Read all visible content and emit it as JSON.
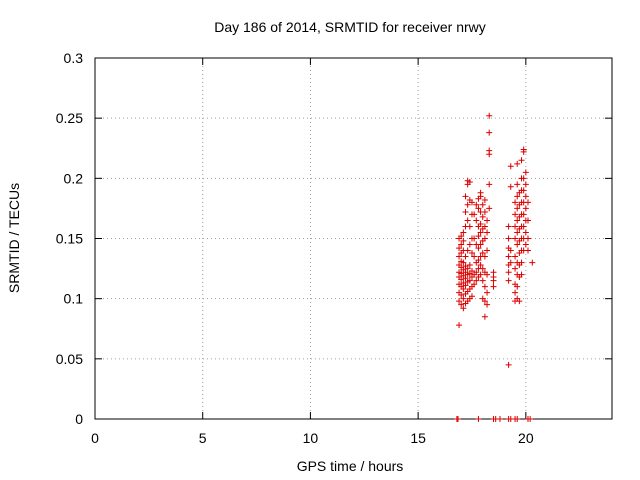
{
  "chart_data": {
    "type": "scatter",
    "title": "Day 186 of 2014, SRMTID for receiver nrwy",
    "xlabel": "GPS time / hours",
    "ylabel": "SRMTID / TECUs",
    "xlim": [
      0,
      24
    ],
    "ylim": [
      0,
      0.3
    ],
    "xticks": [
      0,
      5,
      10,
      15,
      20
    ],
    "xtick_labels": [
      "0",
      "5",
      "10",
      "15",
      "20"
    ],
    "yticks": [
      0,
      0.05,
      0.1,
      0.15,
      0.2,
      0.25,
      0.3
    ],
    "ytick_labels": [
      "0",
      "0.05",
      "0.1",
      "0.15",
      "0.2",
      "0.25",
      "0.3"
    ],
    "grid": true,
    "marker": "+",
    "color": "#dd0000",
    "points": [
      [
        16.9,
        0.078
      ],
      [
        16.9,
        0.098
      ],
      [
        16.9,
        0.105
      ],
      [
        16.9,
        0.112
      ],
      [
        16.9,
        0.118
      ],
      [
        16.9,
        0.122
      ],
      [
        16.9,
        0.128
      ],
      [
        16.9,
        0.135
      ],
      [
        16.9,
        0.142
      ],
      [
        16.9,
        0.15
      ],
      [
        17.0,
        0.095
      ],
      [
        17.0,
        0.103
      ],
      [
        17.0,
        0.11
      ],
      [
        17.0,
        0.116
      ],
      [
        17.0,
        0.121
      ],
      [
        17.0,
        0.126
      ],
      [
        17.0,
        0.131
      ],
      [
        17.0,
        0.138
      ],
      [
        17.0,
        0.145
      ],
      [
        17.0,
        0.152
      ],
      [
        17.1,
        0.092
      ],
      [
        17.1,
        0.1
      ],
      [
        17.1,
        0.108
      ],
      [
        17.1,
        0.113
      ],
      [
        17.1,
        0.119
      ],
      [
        17.1,
        0.124
      ],
      [
        17.1,
        0.13
      ],
      [
        17.1,
        0.14
      ],
      [
        17.1,
        0.148
      ],
      [
        17.1,
        0.155
      ],
      [
        17.2,
        0.096
      ],
      [
        17.2,
        0.104
      ],
      [
        17.2,
        0.111
      ],
      [
        17.2,
        0.117
      ],
      [
        17.2,
        0.122
      ],
      [
        17.2,
        0.127
      ],
      [
        17.2,
        0.135
      ],
      [
        17.2,
        0.16
      ],
      [
        17.2,
        0.172
      ],
      [
        17.2,
        0.185
      ],
      [
        17.3,
        0.098
      ],
      [
        17.3,
        0.106
      ],
      [
        17.3,
        0.114
      ],
      [
        17.3,
        0.12
      ],
      [
        17.3,
        0.125
      ],
      [
        17.3,
        0.14
      ],
      [
        17.3,
        0.165
      ],
      [
        17.3,
        0.178
      ],
      [
        17.3,
        0.195
      ],
      [
        17.3,
        0.198
      ],
      [
        17.4,
        0.1
      ],
      [
        17.4,
        0.108
      ],
      [
        17.4,
        0.115
      ],
      [
        17.4,
        0.121
      ],
      [
        17.4,
        0.128
      ],
      [
        17.4,
        0.145
      ],
      [
        17.4,
        0.16
      ],
      [
        17.4,
        0.182
      ],
      [
        17.4,
        0.197
      ],
      [
        17.5,
        0.102
      ],
      [
        17.5,
        0.11
      ],
      [
        17.5,
        0.118
      ],
      [
        17.5,
        0.123
      ],
      [
        17.5,
        0.138
      ],
      [
        17.5,
        0.15
      ],
      [
        17.5,
        0.17
      ],
      [
        17.5,
        0.18
      ],
      [
        17.6,
        0.112
      ],
      [
        17.6,
        0.12
      ],
      [
        17.6,
        0.135
      ],
      [
        17.6,
        0.15
      ],
      [
        17.6,
        0.17
      ],
      [
        17.7,
        0.115
      ],
      [
        17.7,
        0.122
      ],
      [
        17.7,
        0.13
      ],
      [
        17.7,
        0.145
      ],
      [
        17.7,
        0.165
      ],
      [
        17.7,
        0.178
      ],
      [
        17.8,
        0.118
      ],
      [
        17.8,
        0.125
      ],
      [
        17.8,
        0.132
      ],
      [
        17.8,
        0.142
      ],
      [
        17.8,
        0.152
      ],
      [
        17.8,
        0.16
      ],
      [
        17.8,
        0.175
      ],
      [
        17.8,
        0.183
      ],
      [
        17.9,
        0.12
      ],
      [
        17.9,
        0.128
      ],
      [
        17.9,
        0.135
      ],
      [
        17.9,
        0.145
      ],
      [
        17.9,
        0.155
      ],
      [
        17.9,
        0.162
      ],
      [
        17.9,
        0.172
      ],
      [
        17.9,
        0.185
      ],
      [
        17.9,
        0.188
      ],
      [
        18.0,
        0.1
      ],
      [
        18.0,
        0.115
      ],
      [
        18.0,
        0.125
      ],
      [
        18.0,
        0.138
      ],
      [
        18.0,
        0.148
      ],
      [
        18.0,
        0.158
      ],
      [
        18.0,
        0.168
      ],
      [
        18.0,
        0.178
      ],
      [
        18.1,
        0.085
      ],
      [
        18.1,
        0.098
      ],
      [
        18.1,
        0.11
      ],
      [
        18.1,
        0.122
      ],
      [
        18.1,
        0.135
      ],
      [
        18.1,
        0.15
      ],
      [
        18.1,
        0.16
      ],
      [
        18.1,
        0.172
      ],
      [
        18.1,
        0.182
      ],
      [
        18.2,
        0.095
      ],
      [
        18.2,
        0.105
      ],
      [
        18.2,
        0.12
      ],
      [
        18.2,
        0.14
      ],
      [
        18.2,
        0.155
      ],
      [
        18.2,
        0.165
      ],
      [
        18.3,
        0.195
      ],
      [
        18.3,
        0.22
      ],
      [
        18.3,
        0.223
      ],
      [
        18.3,
        0.238
      ],
      [
        18.3,
        0.252
      ],
      [
        18.3,
        0.175
      ],
      [
        18.5,
        0.11
      ],
      [
        18.5,
        0.115
      ],
      [
        18.5,
        0.122
      ],
      [
        18.5,
        0.118
      ],
      [
        19.2,
        0.045
      ],
      [
        19.2,
        0.115
      ],
      [
        19.2,
        0.122
      ],
      [
        19.2,
        0.128
      ],
      [
        19.2,
        0.135
      ],
      [
        19.2,
        0.142
      ],
      [
        19.2,
        0.15
      ],
      [
        19.2,
        0.16
      ],
      [
        19.3,
        0.193
      ],
      [
        19.3,
        0.21
      ],
      [
        19.3,
        0.14
      ],
      [
        19.3,
        0.13
      ],
      [
        19.5,
        0.098
      ],
      [
        19.5,
        0.105
      ],
      [
        19.5,
        0.112
      ],
      [
        19.5,
        0.125
      ],
      [
        19.5,
        0.135
      ],
      [
        19.5,
        0.15
      ],
      [
        19.5,
        0.16
      ],
      [
        19.5,
        0.17
      ],
      [
        19.5,
        0.18
      ],
      [
        19.6,
        0.1
      ],
      [
        19.6,
        0.11
      ],
      [
        19.6,
        0.12
      ],
      [
        19.6,
        0.13
      ],
      [
        19.6,
        0.145
      ],
      [
        19.6,
        0.155
      ],
      [
        19.6,
        0.165
      ],
      [
        19.6,
        0.175
      ],
      [
        19.6,
        0.185
      ],
      [
        19.6,
        0.195
      ],
      [
        19.6,
        0.212
      ],
      [
        19.7,
        0.098
      ],
      [
        19.7,
        0.118
      ],
      [
        19.7,
        0.128
      ],
      [
        19.7,
        0.138
      ],
      [
        19.7,
        0.148
      ],
      [
        19.7,
        0.158
      ],
      [
        19.7,
        0.168
      ],
      [
        19.7,
        0.178
      ],
      [
        19.7,
        0.188
      ],
      [
        19.8,
        0.12
      ],
      [
        19.8,
        0.13
      ],
      [
        19.8,
        0.14
      ],
      [
        19.8,
        0.15
      ],
      [
        19.8,
        0.16
      ],
      [
        19.8,
        0.17
      ],
      [
        19.8,
        0.18
      ],
      [
        19.8,
        0.19
      ],
      [
        19.8,
        0.2
      ],
      [
        19.8,
        0.215
      ],
      [
        19.9,
        0.14
      ],
      [
        19.9,
        0.15
      ],
      [
        19.9,
        0.16
      ],
      [
        19.9,
        0.17
      ],
      [
        19.9,
        0.18
      ],
      [
        19.9,
        0.19
      ],
      [
        19.9,
        0.2
      ],
      [
        19.9,
        0.222
      ],
      [
        19.9,
        0.224
      ],
      [
        20.0,
        0.145
      ],
      [
        20.0,
        0.155
      ],
      [
        20.0,
        0.165
      ],
      [
        20.0,
        0.175
      ],
      [
        20.0,
        0.185
      ],
      [
        20.0,
        0.195
      ],
      [
        20.0,
        0.205
      ],
      [
        20.1,
        0.14
      ],
      [
        20.1,
        0.15
      ],
      [
        20.1,
        0.165
      ],
      [
        20.1,
        0.18
      ],
      [
        20.3,
        0.13
      ],
      [
        16.8,
        0.0
      ],
      [
        16.85,
        0.0
      ],
      [
        17.8,
        0.0
      ],
      [
        18.5,
        0.0
      ],
      [
        18.6,
        0.0
      ],
      [
        18.8,
        0.0
      ],
      [
        19.2,
        0.0
      ],
      [
        19.3,
        0.0
      ],
      [
        19.5,
        0.0
      ],
      [
        19.6,
        0.0
      ],
      [
        20.1,
        0.0
      ],
      [
        20.2,
        0.0
      ]
    ]
  }
}
